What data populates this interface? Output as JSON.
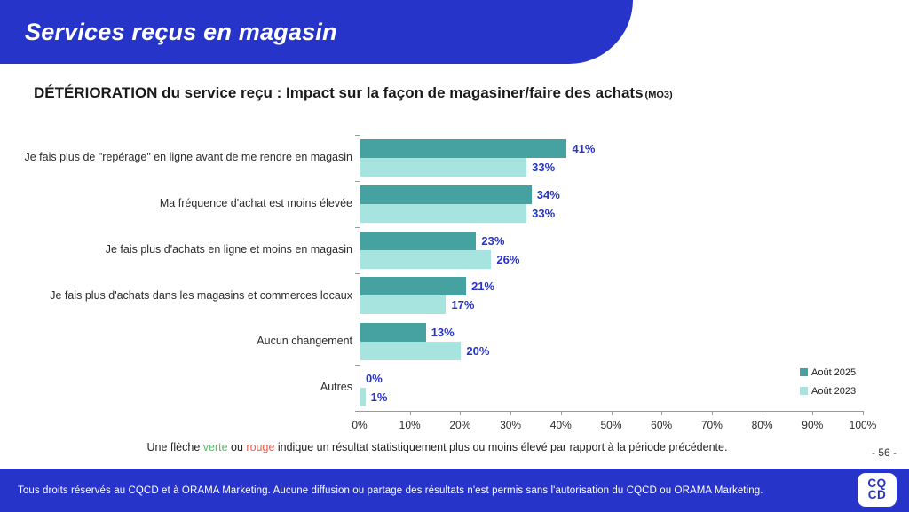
{
  "header": {
    "title": "Services reçus en magasin"
  },
  "main": {
    "title": "DÉTÉRIORATION du service reçu : Impact sur la façon de magasiner/faire des achats",
    "title_suffix": "(MO3)"
  },
  "chart_data": {
    "type": "bar",
    "orientation": "horizontal",
    "categories": [
      "Je fais plus de \"repérage\" en ligne avant de me rendre en magasin",
      "Ma fréquence d'achat est moins élevée",
      "Je fais plus d'achats en ligne et moins en magasin",
      "Je fais plus d'achats dans les magasins et commerces locaux",
      "Aucun changement",
      "Autres"
    ],
    "series": [
      {
        "name": "Août 2025",
        "color": "#45a2a0",
        "values": [
          41,
          34,
          23,
          21,
          13,
          0
        ]
      },
      {
        "name": "Août 2023",
        "color": "#a7e4e0",
        "values": [
          33,
          33,
          26,
          17,
          20,
          1
        ]
      }
    ],
    "value_suffix": "%",
    "xlim": [
      0,
      100
    ],
    "x_ticks": [
      "0%",
      "10%",
      "20%",
      "30%",
      "40%",
      "50%",
      "60%",
      "70%",
      "80%",
      "90%",
      "100%"
    ],
    "grid": false,
    "legend_position": "right",
    "value_label_color": "#2634c9"
  },
  "note": {
    "part1": "Une flèche ",
    "green_word": "verte",
    "part2": " ou ",
    "red_word": "rouge",
    "part3": " indique un résultat statistiquement plus ou moins élevé par rapport à la période précédente."
  },
  "page_number": "- 56 -",
  "footer": {
    "text": "Tous droits réservés au CQCD et à ORAMA Marketing. Aucune diffusion ou partage des résultats n'est permis sans l'autorisation du CQCD ou ORAMA Marketing.",
    "logo_line1": "CQ",
    "logo_line2": "CD"
  },
  "colors": {
    "brand_blue": "#2634c9",
    "teal_2025": "#45a2a0",
    "teal_2023": "#a7e4e0",
    "note_green": "#52ba63",
    "note_red": "#f4574a"
  }
}
